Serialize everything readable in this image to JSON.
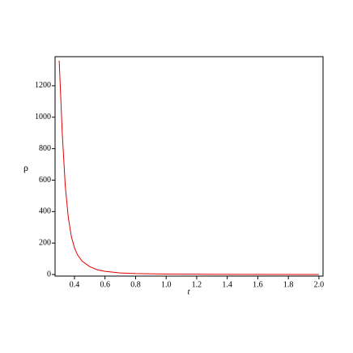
{
  "chart_data": {
    "type": "line",
    "x_label": "t",
    "y_label": "ρ",
    "x": [
      0.3,
      0.32,
      0.34,
      0.36,
      0.38,
      0.4,
      0.42,
      0.45,
      0.5,
      0.55,
      0.6,
      0.7,
      0.8,
      1.0,
      1.2,
      1.5,
      2.0
    ],
    "values": [
      1360,
      900,
      560,
      360,
      240,
      170,
      125,
      85,
      50,
      30,
      20,
      10,
      6,
      3,
      2,
      1,
      0.5
    ],
    "color": "#e00000",
    "xlim": [
      0.273,
      2.027
    ],
    "ylim": [
      -10,
      1385
    ],
    "xticks": [
      0.4,
      0.6,
      0.8,
      {
        "value": 1,
        "label": "1.0"
      },
      1.2,
      1.4,
      1.6,
      1.8,
      {
        "value": 2,
        "label": "2.0"
      }
    ],
    "yticks": [
      0,
      200,
      400,
      600,
      800,
      1000,
      1200
    ],
    "grid": false
  }
}
